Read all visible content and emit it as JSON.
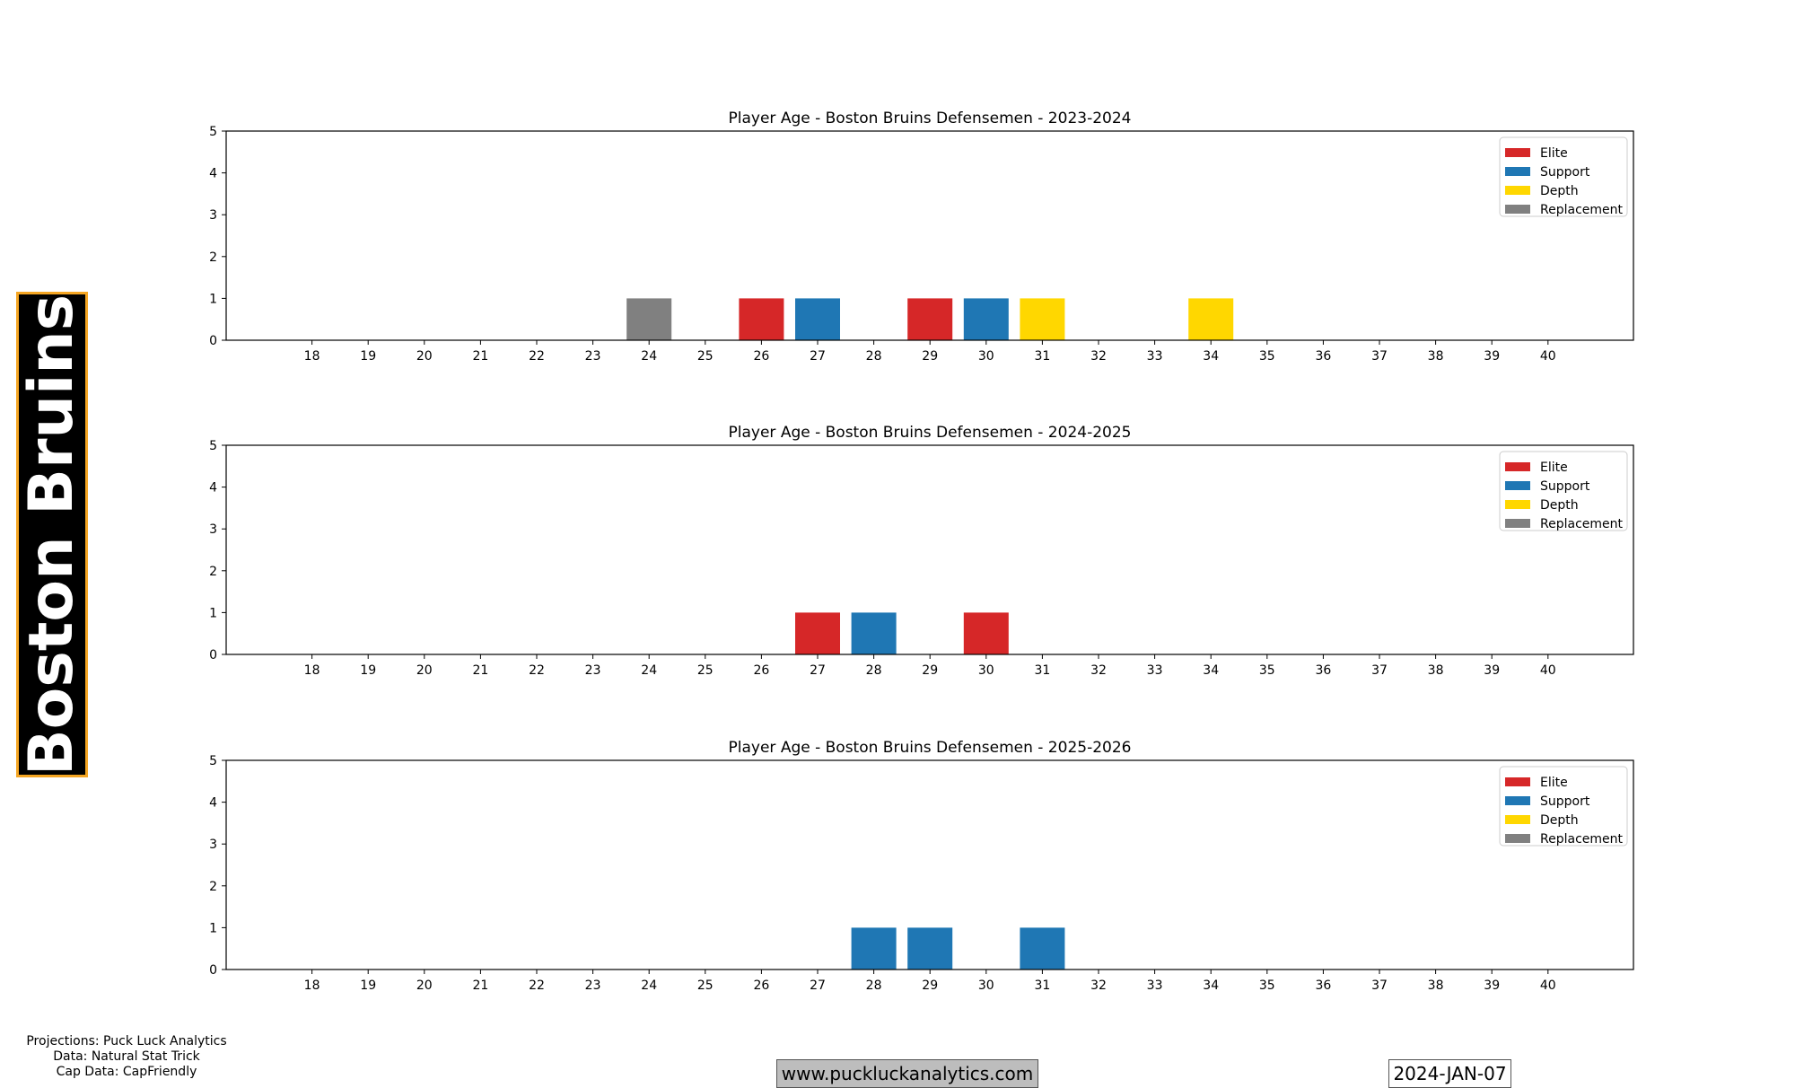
{
  "team_banner": "Boston Bruins",
  "credits": {
    "projections": "Projections: Puck Luck Analytics",
    "data": "Data: Natural Stat Trick",
    "cap": "Cap Data: CapFriendly"
  },
  "website": "www.puckluckanalytics.com",
  "date": "2024-JAN-07",
  "colors": {
    "Elite": "#d62728",
    "Support": "#1f77b4",
    "Depth": "#ffd700",
    "Replacement": "#808080"
  },
  "chart_data": [
    {
      "type": "bar",
      "title": "Player Age - Boston Bruins Defensemen - 2023-2024",
      "categories": [
        18,
        19,
        20,
        21,
        22,
        23,
        24,
        25,
        26,
        27,
        28,
        29,
        30,
        31,
        32,
        33,
        34,
        35,
        36,
        37,
        38,
        39,
        40
      ],
      "ylim": [
        0,
        5
      ],
      "yticks": [
        0,
        1,
        2,
        3,
        4,
        5
      ],
      "legend": [
        "Elite",
        "Support",
        "Depth",
        "Replacement"
      ],
      "legend_position": "top-right",
      "bars": [
        {
          "age": 24,
          "value": 1,
          "tier": "Replacement"
        },
        {
          "age": 26,
          "value": 1,
          "tier": "Elite"
        },
        {
          "age": 27,
          "value": 1,
          "tier": "Support"
        },
        {
          "age": 29,
          "value": 1,
          "tier": "Elite"
        },
        {
          "age": 30,
          "value": 1,
          "tier": "Support"
        },
        {
          "age": 31,
          "value": 1,
          "tier": "Depth"
        },
        {
          "age": 34,
          "value": 1,
          "tier": "Depth"
        }
      ]
    },
    {
      "type": "bar",
      "title": "Player Age - Boston Bruins Defensemen - 2024-2025",
      "categories": [
        18,
        19,
        20,
        21,
        22,
        23,
        24,
        25,
        26,
        27,
        28,
        29,
        30,
        31,
        32,
        33,
        34,
        35,
        36,
        37,
        38,
        39,
        40
      ],
      "ylim": [
        0,
        5
      ],
      "yticks": [
        0,
        1,
        2,
        3,
        4,
        5
      ],
      "legend": [
        "Elite",
        "Support",
        "Depth",
        "Replacement"
      ],
      "legend_position": "top-right",
      "bars": [
        {
          "age": 27,
          "value": 1,
          "tier": "Elite"
        },
        {
          "age": 28,
          "value": 1,
          "tier": "Support"
        },
        {
          "age": 30,
          "value": 1,
          "tier": "Elite"
        }
      ]
    },
    {
      "type": "bar",
      "title": "Player Age - Boston Bruins Defensemen - 2025-2026",
      "categories": [
        18,
        19,
        20,
        21,
        22,
        23,
        24,
        25,
        26,
        27,
        28,
        29,
        30,
        31,
        32,
        33,
        34,
        35,
        36,
        37,
        38,
        39,
        40
      ],
      "ylim": [
        0,
        5
      ],
      "yticks": [
        0,
        1,
        2,
        3,
        4,
        5
      ],
      "legend": [
        "Elite",
        "Support",
        "Depth",
        "Replacement"
      ],
      "legend_position": "top-right",
      "bars": [
        {
          "age": 28,
          "value": 1,
          "tier": "Support"
        },
        {
          "age": 29,
          "value": 1,
          "tier": "Support"
        },
        {
          "age": 31,
          "value": 1,
          "tier": "Support"
        }
      ]
    }
  ]
}
